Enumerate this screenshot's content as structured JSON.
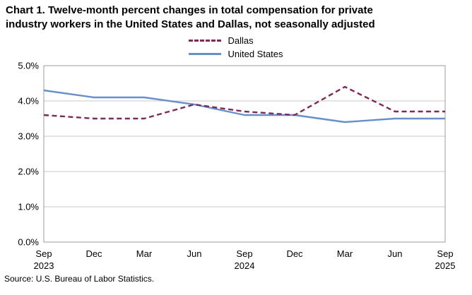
{
  "title": {
    "line1": "Chart 1. Twelve-month percent changes in total compensation for private",
    "line2": "industry workers in the United States and Dallas, not seasonally adjusted"
  },
  "source": "Source: U.S. Bureau of Labor Statistics.",
  "chart_data": {
    "type": "line",
    "title": "Chart 1. Twelve-month percent changes in total compensation for private industry workers in the United States and Dallas, not seasonally adjusted",
    "categories": [
      "Sep 2023",
      "Dec 2023",
      "Mar 2024",
      "Jun 2024",
      "Sep 2024",
      "Dec 2024",
      "Mar 2025",
      "Jun 2025",
      "Sep 2025"
    ],
    "x_ticks": [
      {
        "label": "Sep",
        "year": "2023"
      },
      {
        "label": "Dec"
      },
      {
        "label": "Mar"
      },
      {
        "label": "Jun"
      },
      {
        "label": "Sep",
        "year": "2024"
      },
      {
        "label": "Dec"
      },
      {
        "label": "Mar"
      },
      {
        "label": "Jun"
      },
      {
        "label": "Sep",
        "year": "2025"
      }
    ],
    "series": [
      {
        "name": "Dallas",
        "color": "#7D2A56",
        "dash": true,
        "values": [
          3.6,
          3.5,
          3.5,
          3.9,
          3.7,
          3.6,
          4.4,
          3.7,
          3.7
        ]
      },
      {
        "name": "United States",
        "color": "#6690CC",
        "dash": false,
        "values": [
          4.3,
          4.1,
          4.1,
          3.9,
          3.6,
          3.6,
          3.4,
          3.5,
          3.5
        ]
      }
    ],
    "ylim": [
      0,
      5
    ],
    "ytick_values": [
      0,
      1,
      2,
      3,
      4,
      5
    ],
    "ytick_labels": [
      "0.0%",
      "1.0%",
      "2.0%",
      "3.0%",
      "4.0%",
      "5.0%"
    ],
    "xlabel": "",
    "ylabel": "",
    "grid": true,
    "legend_position": "top-center",
    "colors": {
      "grid": "#C9C9C9",
      "border": "#9C9C9C",
      "tick_text": "#000000"
    }
  }
}
